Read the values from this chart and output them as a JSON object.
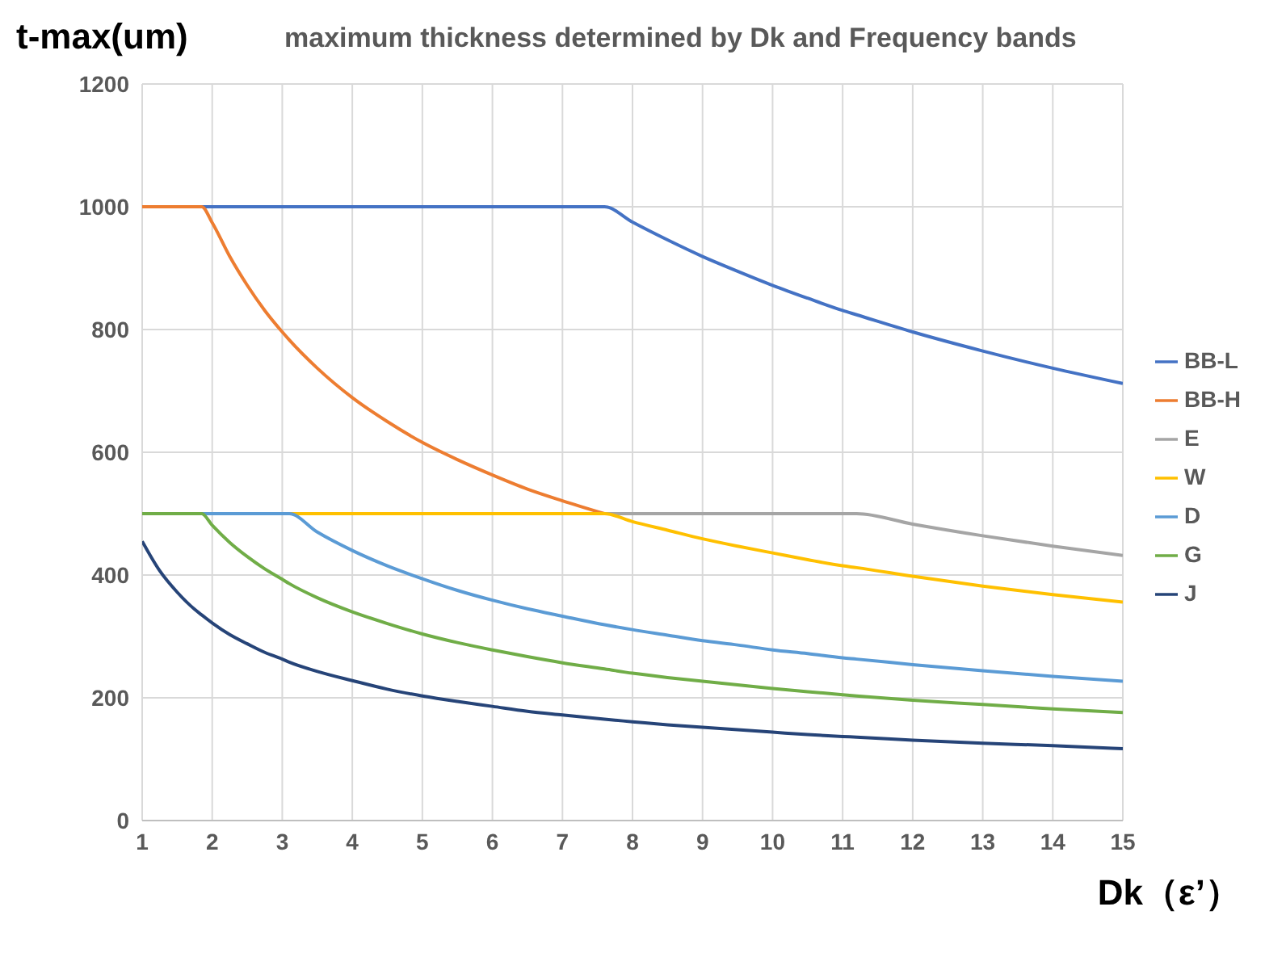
{
  "chart_data": {
    "type": "line",
    "title": "maximum thickness determined by Dk and Frequency bands",
    "ylabel": "t-max(um)",
    "xlabel": "Dk（ε’）",
    "x": [
      1,
      1.25,
      1.5,
      1.75,
      1.85,
      2,
      2.25,
      2.5,
      2.75,
      3,
      3.1,
      3.5,
      4,
      4.5,
      5,
      5.5,
      6,
      6.5,
      7,
      7.6,
      8,
      8.5,
      9,
      9.5,
      10,
      10.5,
      11,
      11.2,
      12,
      13,
      14,
      15
    ],
    "series": [
      {
        "name": "BB-L",
        "color": "#4472c4",
        "values": [
          null,
          null,
          null,
          null,
          1000,
          1000,
          1000,
          1000,
          1000,
          1000,
          1000,
          1000,
          1000,
          1000,
          1000,
          1000,
          1000,
          1000,
          1000,
          1000,
          975,
          946,
          919,
          895,
          872,
          851,
          831,
          824,
          796,
          765,
          737,
          712
        ]
      },
      {
        "name": "BB-H",
        "color": "#ed7d31",
        "values": [
          1000,
          1000,
          1000,
          1000,
          1000,
          974,
          919,
          872,
          831,
          796,
          783,
          737,
          689,
          650,
          616,
          588,
          563,
          540,
          521,
          500,
          null,
          null,
          null,
          null,
          null,
          null,
          null,
          null,
          null,
          null,
          null,
          null
        ]
      },
      {
        "name": "E",
        "color": "#a5a5a5",
        "values": [
          null,
          null,
          null,
          null,
          null,
          null,
          null,
          null,
          null,
          null,
          null,
          null,
          null,
          null,
          null,
          null,
          null,
          null,
          null,
          500,
          500,
          500,
          500,
          500,
          500,
          500,
          500,
          500,
          483,
          464,
          447,
          432
        ]
      },
      {
        "name": "W",
        "color": "#ffc000",
        "values": [
          null,
          null,
          null,
          null,
          null,
          null,
          null,
          null,
          null,
          null,
          500,
          500,
          500,
          500,
          500,
          500,
          500,
          500,
          500,
          500,
          487,
          473,
          459,
          447,
          436,
          425,
          415,
          412,
          398,
          382,
          368,
          356
        ]
      },
      {
        "name": "D",
        "color": "#5b9bd5",
        "values": [
          null,
          null,
          null,
          null,
          500,
          500,
          500,
          500,
          500,
          500,
          500,
          470,
          440,
          415,
          394,
          375,
          359,
          345,
          333,
          319,
          311,
          302,
          293,
          286,
          278,
          272,
          265,
          263,
          254,
          244,
          235,
          227
        ]
      },
      {
        "name": "G",
        "color": "#70ad47",
        "values": [
          500,
          500,
          500,
          500,
          500,
          481,
          453,
          430,
          410,
          393,
          386,
          363,
          340,
          321,
          304,
          290,
          278,
          267,
          257,
          247,
          240,
          233,
          227,
          221,
          215,
          210,
          205,
          203,
          196,
          189,
          182,
          176
        ]
      },
      {
        "name": "J",
        "color": "#264478",
        "values": [
          455,
          407,
          372,
          344,
          335,
          322,
          303,
          288,
          274,
          263,
          258,
          243,
          228,
          214,
          203,
          194,
          186,
          178,
          172,
          165,
          161,
          156,
          152,
          148,
          144,
          140,
          137,
          136,
          131,
          126,
          122,
          117
        ]
      }
    ],
    "xlim": [
      1,
      15
    ],
    "xticks": [
      1,
      2,
      3,
      4,
      5,
      6,
      7,
      8,
      9,
      10,
      11,
      12,
      13,
      14,
      15
    ],
    "ylim": [
      0,
      1200
    ],
    "yticks": [
      0,
      200,
      400,
      600,
      800,
      1000,
      1200
    ],
    "grid": true,
    "legend": "right",
    "marker": "none",
    "line_style": "solid"
  }
}
